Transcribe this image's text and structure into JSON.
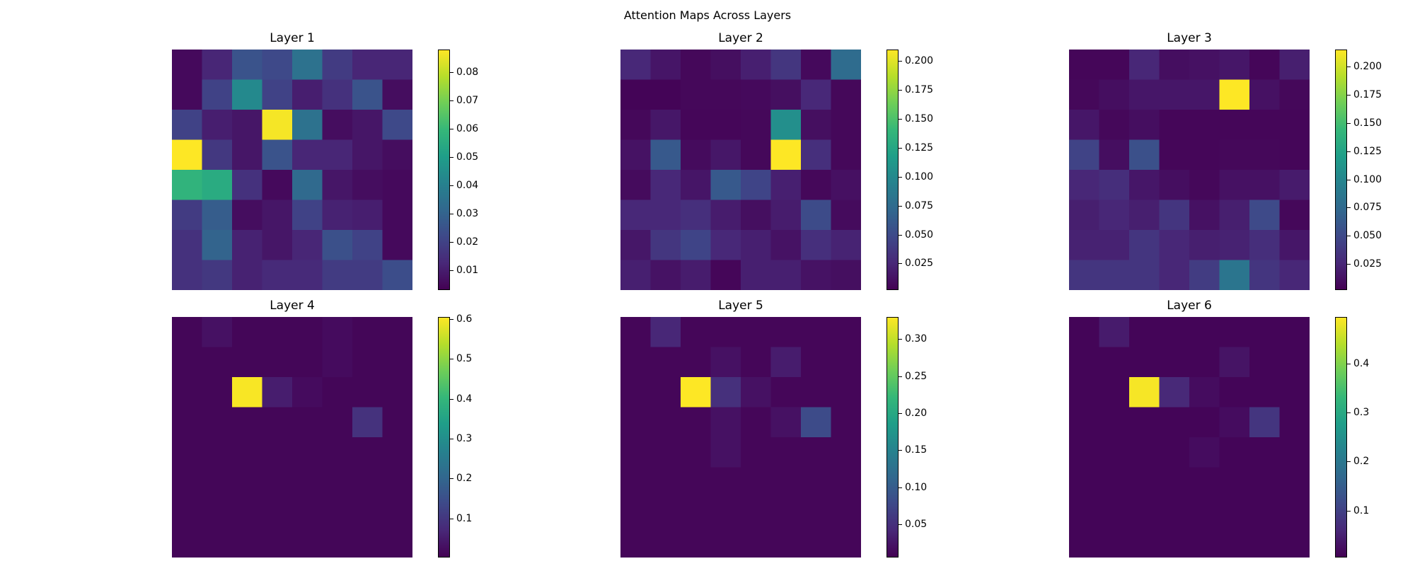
{
  "figure": {
    "title": "Attention Maps Across Layers"
  },
  "colormap": [
    "#440154",
    "#482878",
    "#3e4989",
    "#31688e",
    "#26828e",
    "#1f9e89",
    "#35b779",
    "#6ece58",
    "#b5de2b",
    "#fde725"
  ],
  "chart_data": [
    {
      "type": "heatmap",
      "title": "Layer 1",
      "vmin": 0.003,
      "vmax": 0.088,
      "colorbar_ticks": [
        0.01,
        0.02,
        0.03,
        0.04,
        0.05,
        0.06,
        0.07,
        0.08
      ],
      "colorbar_tick_labels": [
        "0.01",
        "0.02",
        "0.03",
        "0.04",
        "0.05",
        "0.06",
        "0.07",
        "0.08"
      ],
      "values": [
        [
          0.005,
          0.012,
          0.025,
          0.022,
          0.035,
          0.018,
          0.012,
          0.012
        ],
        [
          0.005,
          0.02,
          0.043,
          0.02,
          0.01,
          0.015,
          0.025,
          0.006
        ],
        [
          0.02,
          0.01,
          0.008,
          0.087,
          0.035,
          0.006,
          0.008,
          0.022
        ],
        [
          0.088,
          0.017,
          0.008,
          0.025,
          0.012,
          0.012,
          0.008,
          0.006
        ],
        [
          0.058,
          0.055,
          0.015,
          0.005,
          0.032,
          0.008,
          0.006,
          0.005
        ],
        [
          0.018,
          0.028,
          0.006,
          0.008,
          0.02,
          0.011,
          0.01,
          0.005
        ],
        [
          0.015,
          0.03,
          0.011,
          0.008,
          0.012,
          0.024,
          0.02,
          0.005
        ],
        [
          0.015,
          0.017,
          0.011,
          0.013,
          0.013,
          0.018,
          0.018,
          0.023
        ]
      ]
    },
    {
      "type": "heatmap",
      "title": "Layer 2",
      "vmin": 0.002,
      "vmax": 0.21,
      "colorbar_ticks": [
        0.025,
        0.05,
        0.075,
        0.1,
        0.125,
        0.15,
        0.175,
        0.2
      ],
      "colorbar_tick_labels": [
        "0.025",
        "0.050",
        "0.075",
        "0.100",
        "0.125",
        "0.150",
        "0.175",
        "0.200"
      ],
      "values": [
        [
          0.025,
          0.014,
          0.006,
          0.01,
          0.02,
          0.035,
          0.007,
          0.075
        ],
        [
          0.004,
          0.004,
          0.006,
          0.006,
          0.007,
          0.01,
          0.025,
          0.006
        ],
        [
          0.006,
          0.015,
          0.005,
          0.005,
          0.006,
          0.105,
          0.01,
          0.006
        ],
        [
          0.012,
          0.06,
          0.008,
          0.015,
          0.006,
          0.21,
          0.03,
          0.006
        ],
        [
          0.008,
          0.025,
          0.014,
          0.06,
          0.045,
          0.02,
          0.006,
          0.011
        ],
        [
          0.025,
          0.025,
          0.03,
          0.018,
          0.01,
          0.018,
          0.05,
          0.008
        ],
        [
          0.015,
          0.035,
          0.045,
          0.025,
          0.02,
          0.012,
          0.03,
          0.022
        ],
        [
          0.02,
          0.012,
          0.018,
          0.005,
          0.02,
          0.02,
          0.012,
          0.01
        ]
      ]
    },
    {
      "type": "heatmap",
      "title": "Layer 3",
      "vmin": 0.002,
      "vmax": 0.215,
      "colorbar_ticks": [
        0.025,
        0.05,
        0.075,
        0.1,
        0.125,
        0.15,
        0.175,
        0.2
      ],
      "colorbar_tick_labels": [
        "0.025",
        "0.050",
        "0.075",
        "0.100",
        "0.125",
        "0.150",
        "0.175",
        "0.200"
      ],
      "values": [
        [
          0.005,
          0.005,
          0.025,
          0.01,
          0.012,
          0.015,
          0.005,
          0.02
        ],
        [
          0.006,
          0.01,
          0.015,
          0.015,
          0.015,
          0.215,
          0.012,
          0.006
        ],
        [
          0.015,
          0.006,
          0.01,
          0.005,
          0.005,
          0.005,
          0.005,
          0.005
        ],
        [
          0.045,
          0.01,
          0.055,
          0.005,
          0.005,
          0.006,
          0.006,
          0.005
        ],
        [
          0.025,
          0.03,
          0.015,
          0.01,
          0.006,
          0.012,
          0.012,
          0.018
        ],
        [
          0.02,
          0.025,
          0.02,
          0.035,
          0.012,
          0.02,
          0.05,
          0.006
        ],
        [
          0.022,
          0.022,
          0.035,
          0.025,
          0.02,
          0.022,
          0.03,
          0.015
        ],
        [
          0.035,
          0.035,
          0.035,
          0.025,
          0.04,
          0.085,
          0.035,
          0.025
        ]
      ]
    },
    {
      "type": "heatmap",
      "title": "Layer 4",
      "vmin": 0.002,
      "vmax": 0.605,
      "colorbar_ticks": [
        0.1,
        0.2,
        0.3,
        0.4,
        0.5,
        0.6
      ],
      "colorbar_tick_labels": [
        "0.1",
        "0.2",
        "0.3",
        "0.4",
        "0.5",
        "0.6"
      ],
      "values": [
        [
          0.01,
          0.03,
          0.01,
          0.01,
          0.01,
          0.02,
          0.01,
          0.01
        ],
        [
          0.01,
          0.01,
          0.01,
          0.01,
          0.01,
          0.02,
          0.01,
          0.01
        ],
        [
          0.01,
          0.01,
          0.6,
          0.05,
          0.02,
          0.01,
          0.01,
          0.01
        ],
        [
          0.01,
          0.01,
          0.01,
          0.01,
          0.01,
          0.01,
          0.09,
          0.01
        ],
        [
          0.01,
          0.01,
          0.01,
          0.01,
          0.01,
          0.01,
          0.01,
          0.01
        ],
        [
          0.01,
          0.01,
          0.01,
          0.01,
          0.01,
          0.01,
          0.01,
          0.01
        ],
        [
          0.01,
          0.01,
          0.01,
          0.01,
          0.01,
          0.01,
          0.01,
          0.01
        ],
        [
          0.01,
          0.01,
          0.01,
          0.01,
          0.01,
          0.01,
          0.01,
          0.01
        ]
      ]
    },
    {
      "type": "heatmap",
      "title": "Layer 5",
      "vmin": 0.005,
      "vmax": 0.33,
      "colorbar_ticks": [
        0.05,
        0.1,
        0.15,
        0.2,
        0.25,
        0.3
      ],
      "colorbar_tick_labels": [
        "0.05",
        "0.10",
        "0.15",
        "0.20",
        "0.25",
        "0.30"
      ],
      "values": [
        [
          0.01,
          0.04,
          0.01,
          0.01,
          0.01,
          0.01,
          0.01,
          0.01
        ],
        [
          0.01,
          0.01,
          0.01,
          0.02,
          0.01,
          0.03,
          0.01,
          0.01
        ],
        [
          0.01,
          0.01,
          0.33,
          0.05,
          0.02,
          0.01,
          0.01,
          0.01
        ],
        [
          0.01,
          0.01,
          0.01,
          0.02,
          0.01,
          0.02,
          0.08,
          0.01
        ],
        [
          0.01,
          0.01,
          0.01,
          0.02,
          0.01,
          0.01,
          0.01,
          0.01
        ],
        [
          0.01,
          0.01,
          0.01,
          0.01,
          0.01,
          0.01,
          0.01,
          0.01
        ],
        [
          0.01,
          0.01,
          0.01,
          0.01,
          0.01,
          0.01,
          0.01,
          0.01
        ],
        [
          0.01,
          0.01,
          0.01,
          0.01,
          0.01,
          0.01,
          0.01,
          0.01
        ]
      ]
    },
    {
      "type": "heatmap",
      "title": "Layer 6",
      "vmin": 0.004,
      "vmax": 0.495,
      "colorbar_ticks": [
        0.1,
        0.2,
        0.3,
        0.4
      ],
      "colorbar_tick_labels": [
        "0.1",
        "0.2",
        "0.3",
        "0.4"
      ],
      "values": [
        [
          0.01,
          0.04,
          0.01,
          0.01,
          0.01,
          0.01,
          0.01,
          0.01
        ],
        [
          0.01,
          0.01,
          0.01,
          0.01,
          0.01,
          0.03,
          0.01,
          0.01
        ],
        [
          0.01,
          0.01,
          0.49,
          0.06,
          0.02,
          0.01,
          0.01,
          0.01
        ],
        [
          0.01,
          0.01,
          0.01,
          0.01,
          0.01,
          0.02,
          0.08,
          0.01
        ],
        [
          0.01,
          0.01,
          0.01,
          0.01,
          0.02,
          0.01,
          0.01,
          0.01
        ],
        [
          0.01,
          0.01,
          0.01,
          0.01,
          0.01,
          0.01,
          0.01,
          0.01
        ],
        [
          0.01,
          0.01,
          0.01,
          0.01,
          0.01,
          0.01,
          0.01,
          0.01
        ],
        [
          0.01,
          0.01,
          0.01,
          0.01,
          0.01,
          0.01,
          0.01,
          0.01
        ]
      ]
    }
  ]
}
